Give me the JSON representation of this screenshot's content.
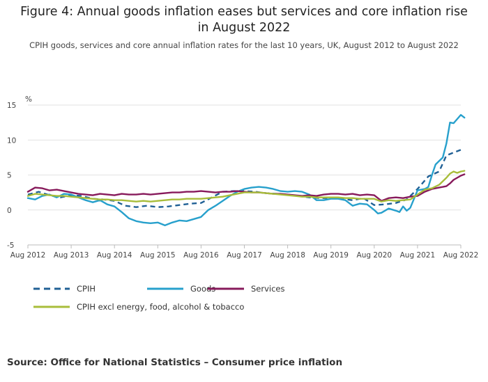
{
  "title_line1": "Figure 4: Annual goods inflation eases but services and core inflation rise",
  "title_line2": "in August 2022",
  "subtitle": "CPIH goods, services and core annual inflation rates for the last 10 years, UK, August 2012 to August 2022",
  "source": "Source: Office for National Statistics – Consumer price inflation",
  "chart_data": {
    "type": "line",
    "title": "Figure 4: Annual goods inflation eases but services and core inflation rise in August 2022",
    "ylabel": "%",
    "xlabel": "",
    "ylim": [
      -5,
      15
    ],
    "yticks": [
      15,
      10,
      5,
      0,
      -5
    ],
    "xticks": [
      "Aug 2012",
      "Aug 2013",
      "Aug 2014",
      "Aug 2015",
      "Aug 2016",
      "Aug 2017",
      "Aug 2018",
      "Aug 2019",
      "Aug 2020",
      "Aug 2021",
      "Aug 2022"
    ],
    "grid": true,
    "legend_position": "bottom",
    "series": [
      {
        "name": "CPIH",
        "color": "#206095",
        "style": "dashed",
        "points": [
          [
            0,
            2.2
          ],
          [
            3,
            2.6
          ],
          [
            6,
            2.1
          ],
          [
            9,
            1.8
          ],
          [
            12,
            2.1
          ],
          [
            15,
            2.0
          ],
          [
            18,
            1.6
          ],
          [
            21,
            1.5
          ],
          [
            24,
            1.3
          ],
          [
            27,
            0.6
          ],
          [
            30,
            0.4
          ],
          [
            33,
            0.6
          ],
          [
            36,
            0.4
          ],
          [
            39,
            0.5
          ],
          [
            42,
            0.7
          ],
          [
            45,
            0.9
          ],
          [
            48,
            1.0
          ],
          [
            51,
            1.8
          ],
          [
            54,
            2.6
          ],
          [
            57,
            2.7
          ],
          [
            60,
            2.7
          ],
          [
            63,
            2.6
          ],
          [
            66,
            2.4
          ],
          [
            69,
            2.3
          ],
          [
            72,
            2.2
          ],
          [
            75,
            2.0
          ],
          [
            78,
            1.8
          ],
          [
            81,
            1.7
          ],
          [
            84,
            1.7
          ],
          [
            87,
            1.6
          ],
          [
            90,
            1.4
          ],
          [
            93,
            1.7
          ],
          [
            96,
            0.7
          ],
          [
            99,
            0.8
          ],
          [
            102,
            1.0
          ],
          [
            105,
            1.5
          ],
          [
            108,
            3.0
          ],
          [
            111,
            4.8
          ],
          [
            114,
            5.5
          ],
          [
            116,
            7.8
          ],
          [
            118,
            8.2
          ],
          [
            120,
            8.6
          ]
        ]
      },
      {
        "name": "Goods",
        "color": "#27a0cc",
        "style": "solid",
        "points": [
          [
            0,
            1.7
          ],
          [
            2,
            1.5
          ],
          [
            4,
            2.0
          ],
          [
            6,
            2.2
          ],
          [
            8,
            1.8
          ],
          [
            10,
            2.3
          ],
          [
            12,
            2.2
          ],
          [
            14,
            1.8
          ],
          [
            16,
            1.4
          ],
          [
            18,
            1.1
          ],
          [
            20,
            1.4
          ],
          [
            22,
            0.8
          ],
          [
            24,
            0.5
          ],
          [
            26,
            -0.3
          ],
          [
            28,
            -1.2
          ],
          [
            30,
            -1.6
          ],
          [
            32,
            -1.8
          ],
          [
            34,
            -1.9
          ],
          [
            36,
            -1.8
          ],
          [
            38,
            -2.2
          ],
          [
            40,
            -1.8
          ],
          [
            42,
            -1.5
          ],
          [
            44,
            -1.6
          ],
          [
            46,
            -1.3
          ],
          [
            48,
            -1.0
          ],
          [
            50,
            0.0
          ],
          [
            52,
            0.6
          ],
          [
            54,
            1.3
          ],
          [
            56,
            2.0
          ],
          [
            58,
            2.6
          ],
          [
            60,
            3.0
          ],
          [
            62,
            3.2
          ],
          [
            64,
            3.3
          ],
          [
            66,
            3.2
          ],
          [
            68,
            3.0
          ],
          [
            70,
            2.7
          ],
          [
            72,
            2.6
          ],
          [
            74,
            2.7
          ],
          [
            76,
            2.6
          ],
          [
            78,
            2.2
          ],
          [
            80,
            1.4
          ],
          [
            82,
            1.4
          ],
          [
            84,
            1.6
          ],
          [
            86,
            1.6
          ],
          [
            88,
            1.4
          ],
          [
            90,
            0.6
          ],
          [
            92,
            0.9
          ],
          [
            94,
            0.8
          ],
          [
            96,
            0.0
          ],
          [
            97,
            -0.5
          ],
          [
            98,
            -0.4
          ],
          [
            100,
            0.2
          ],
          [
            102,
            -0.1
          ],
          [
            103,
            -0.3
          ],
          [
            104,
            0.5
          ],
          [
            105,
            -0.1
          ],
          [
            106,
            0.3
          ],
          [
            108,
            2.8
          ],
          [
            110,
            3.0
          ],
          [
            111,
            3.3
          ],
          [
            112,
            5.0
          ],
          [
            113,
            6.5
          ],
          [
            114,
            7.0
          ],
          [
            115,
            7.5
          ],
          [
            116,
            9.5
          ],
          [
            117,
            12.5
          ],
          [
            118,
            12.4
          ],
          [
            119,
            13.0
          ],
          [
            120,
            13.6
          ],
          [
            121,
            13.2
          ]
        ]
      },
      {
        "name": "Services",
        "color": "#871a5b",
        "style": "solid",
        "points": [
          [
            0,
            2.6
          ],
          [
            2,
            3.2
          ],
          [
            4,
            3.1
          ],
          [
            6,
            2.8
          ],
          [
            8,
            2.9
          ],
          [
            10,
            2.7
          ],
          [
            12,
            2.5
          ],
          [
            14,
            2.3
          ],
          [
            16,
            2.2
          ],
          [
            18,
            2.1
          ],
          [
            20,
            2.3
          ],
          [
            22,
            2.2
          ],
          [
            24,
            2.1
          ],
          [
            26,
            2.3
          ],
          [
            28,
            2.2
          ],
          [
            30,
            2.2
          ],
          [
            32,
            2.3
          ],
          [
            34,
            2.2
          ],
          [
            36,
            2.3
          ],
          [
            38,
            2.4
          ],
          [
            40,
            2.5
          ],
          [
            42,
            2.5
          ],
          [
            44,
            2.6
          ],
          [
            46,
            2.6
          ],
          [
            48,
            2.7
          ],
          [
            50,
            2.6
          ],
          [
            52,
            2.5
          ],
          [
            54,
            2.6
          ],
          [
            56,
            2.6
          ],
          [
            58,
            2.7
          ],
          [
            60,
            2.6
          ],
          [
            62,
            2.5
          ],
          [
            64,
            2.5
          ],
          [
            66,
            2.4
          ],
          [
            68,
            2.3
          ],
          [
            70,
            2.3
          ],
          [
            72,
            2.2
          ],
          [
            74,
            2.1
          ],
          [
            76,
            2.0
          ],
          [
            78,
            2.1
          ],
          [
            80,
            2.0
          ],
          [
            82,
            2.2
          ],
          [
            84,
            2.3
          ],
          [
            86,
            2.3
          ],
          [
            88,
            2.2
          ],
          [
            90,
            2.3
          ],
          [
            92,
            2.1
          ],
          [
            94,
            2.2
          ],
          [
            96,
            2.1
          ],
          [
            98,
            1.3
          ],
          [
            100,
            1.7
          ],
          [
            102,
            1.8
          ],
          [
            104,
            1.7
          ],
          [
            106,
            1.9
          ],
          [
            108,
            2.0
          ],
          [
            110,
            2.6
          ],
          [
            112,
            3.0
          ],
          [
            114,
            3.2
          ],
          [
            116,
            3.4
          ],
          [
            117,
            3.8
          ],
          [
            118,
            4.3
          ],
          [
            119,
            4.6
          ],
          [
            120,
            4.9
          ],
          [
            121,
            5.1
          ]
        ]
      },
      {
        "name": "CPIH excl energy, food, alcohol & tobacco",
        "color": "#a8bd3a",
        "style": "solid",
        "points": [
          [
            0,
            2.0
          ],
          [
            2,
            2.3
          ],
          [
            4,
            2.2
          ],
          [
            6,
            2.1
          ],
          [
            8,
            2.0
          ],
          [
            10,
            2.0
          ],
          [
            12,
            1.9
          ],
          [
            14,
            1.8
          ],
          [
            16,
            1.7
          ],
          [
            18,
            1.6
          ],
          [
            20,
            1.5
          ],
          [
            22,
            1.5
          ],
          [
            24,
            1.4
          ],
          [
            26,
            1.4
          ],
          [
            28,
            1.3
          ],
          [
            30,
            1.2
          ],
          [
            32,
            1.3
          ],
          [
            34,
            1.2
          ],
          [
            36,
            1.3
          ],
          [
            38,
            1.4
          ],
          [
            40,
            1.5
          ],
          [
            42,
            1.5
          ],
          [
            44,
            1.6
          ],
          [
            46,
            1.6
          ],
          [
            48,
            1.6
          ],
          [
            50,
            1.7
          ],
          [
            52,
            1.8
          ],
          [
            54,
            1.9
          ],
          [
            56,
            2.1
          ],
          [
            58,
            2.3
          ],
          [
            60,
            2.5
          ],
          [
            62,
            2.5
          ],
          [
            64,
            2.5
          ],
          [
            66,
            2.4
          ],
          [
            68,
            2.3
          ],
          [
            70,
            2.2
          ],
          [
            72,
            2.1
          ],
          [
            74,
            2.0
          ],
          [
            76,
            1.9
          ],
          [
            78,
            1.9
          ],
          [
            80,
            1.8
          ],
          [
            82,
            1.8
          ],
          [
            84,
            1.8
          ],
          [
            86,
            1.8
          ],
          [
            88,
            1.7
          ],
          [
            90,
            1.7
          ],
          [
            92,
            1.6
          ],
          [
            94,
            1.6
          ],
          [
            96,
            1.6
          ],
          [
            98,
            1.2
          ],
          [
            100,
            1.4
          ],
          [
            102,
            1.3
          ],
          [
            104,
            1.4
          ],
          [
            106,
            1.5
          ],
          [
            108,
            2.2
          ],
          [
            110,
            2.9
          ],
          [
            112,
            3.1
          ],
          [
            114,
            3.6
          ],
          [
            116,
            4.6
          ],
          [
            117,
            5.2
          ],
          [
            118,
            5.5
          ],
          [
            119,
            5.3
          ],
          [
            120,
            5.5
          ],
          [
            121,
            5.6
          ]
        ]
      }
    ]
  }
}
